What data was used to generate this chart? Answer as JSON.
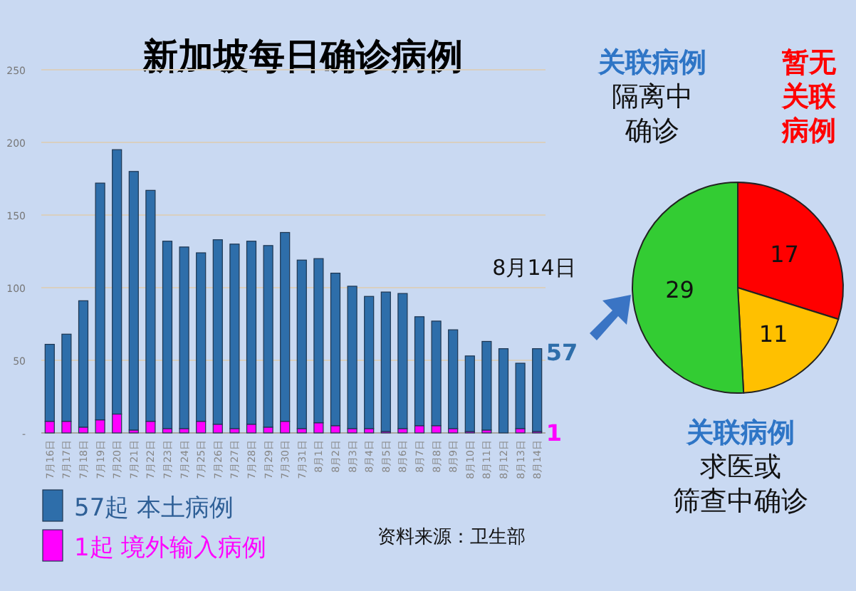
{
  "chart_data": [
    {
      "type": "bar",
      "title": "新加坡每日确诊病例",
      "stacked": true,
      "grid": "y",
      "legend": "bottom left",
      "categories": [
        "7月16日",
        "7月17日",
        "7月18日",
        "7月19日",
        "7月20日",
        "7月21日",
        "7月22日",
        "7月23日",
        "7月24日",
        "7月25日",
        "7月26日",
        "7月27日",
        "7月28日",
        "7月29日",
        "7月30日",
        "7月31日",
        "8月1日",
        "8月2日",
        "8月3日",
        "8月4日",
        "8月5日",
        "8月6日",
        "8月7日",
        "8月8日",
        "8月9日",
        "8月10日",
        "8月11日",
        "8月12日",
        "8月13日",
        "8月14日"
      ],
      "series": [
        {
          "name": "1起  境外输入病例",
          "color": "#ff00ff",
          "values": [
            8,
            8,
            4,
            9,
            13,
            2,
            8,
            3,
            3,
            8,
            6,
            3,
            6,
            4,
            8,
            3,
            7,
            5,
            3,
            3,
            1,
            3,
            5,
            5,
            3,
            1,
            2,
            0,
            3,
            1
          ],
          "value_labels": [
            null,
            null,
            null,
            null,
            null,
            null,
            null,
            null,
            null,
            null,
            null,
            null,
            null,
            null,
            null,
            null,
            null,
            null,
            null,
            null,
            null,
            null,
            null,
            null,
            null,
            null,
            null,
            null,
            null,
            "1"
          ]
        },
        {
          "name": "57起 本土病例",
          "color": "#2e6eaa",
          "values": [
            53,
            60,
            87,
            163,
            182,
            178,
            159,
            129,
            125,
            116,
            127,
            127,
            126,
            125,
            130,
            116,
            113,
            105,
            98,
            91,
            96,
            93,
            75,
            72,
            68,
            52,
            61,
            58,
            45,
            57
          ],
          "value_labels": [
            null,
            null,
            null,
            null,
            null,
            null,
            null,
            null,
            null,
            null,
            null,
            null,
            null,
            null,
            null,
            null,
            null,
            null,
            null,
            null,
            null,
            null,
            null,
            null,
            null,
            null,
            null,
            null,
            null,
            "57"
          ]
        }
      ],
      "ylim": [
        0,
        250
      ],
      "yticks": [
        {
          "value": 0,
          "label": "-"
        },
        50,
        100,
        150,
        200,
        250
      ],
      "annotations": [
        "8月14日",
        "资料来源：卫生部"
      ]
    },
    {
      "type": "pie",
      "data_labels": true,
      "categories": [
        "暂无关联病例",
        "关联病例求医或筛查中确诊",
        "关联病例隔离中确诊"
      ],
      "values": [
        17,
        11,
        29
      ],
      "colors": [
        "#ff0000",
        "#ffc000",
        "#33cc33"
      ]
    }
  ]
}
